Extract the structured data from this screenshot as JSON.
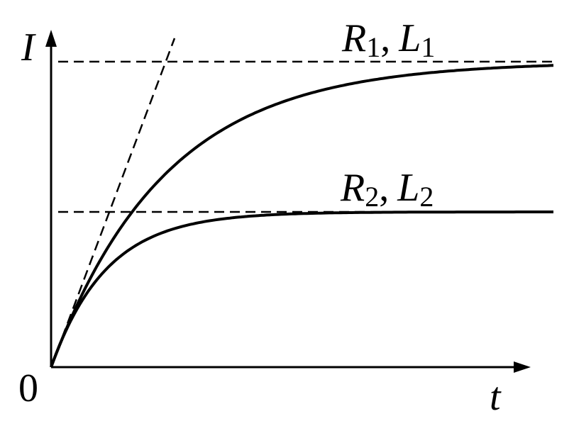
{
  "axes": {
    "y_label": "I",
    "x_label": "t",
    "origin": "0"
  },
  "curves": [
    {
      "r": "R",
      "r_sub": "1",
      "separator": ",",
      "l": "L",
      "l_sub": "1"
    },
    {
      "r": "R",
      "r_sub": "2",
      "separator": ",",
      "l": "L",
      "l_sub": "2"
    }
  ]
}
